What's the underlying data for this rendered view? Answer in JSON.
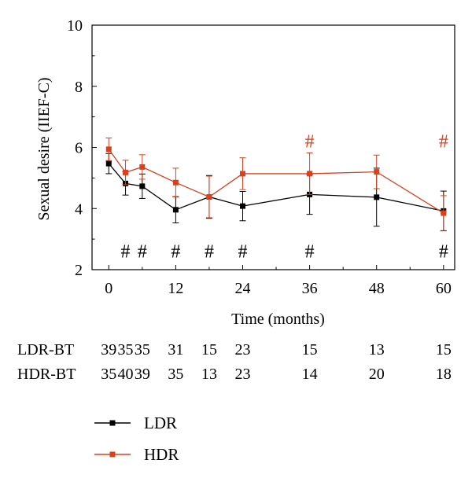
{
  "chart_data": {
    "type": "line",
    "xlabel": "Time (months)",
    "ylabel": "Sexual desire (IIEF-C)",
    "xlim": [
      -3,
      62
    ],
    "ylim": [
      2,
      10
    ],
    "xticks": [
      "0",
      "12",
      "24",
      "36",
      "48",
      "60"
    ],
    "yticks": [
      "2",
      "4",
      "6",
      "8",
      "10"
    ],
    "x": [
      0,
      3,
      6,
      12,
      18,
      24,
      36,
      48,
      60
    ],
    "series": [
      {
        "name": "LDR",
        "color": "#000000",
        "values": [
          5.47,
          4.82,
          4.73,
          3.96,
          4.38,
          4.08,
          4.46,
          4.37,
          3.92
        ],
        "error": [
          0.33,
          0.38,
          0.4,
          0.43,
          0.7,
          0.48,
          0.65,
          0.95,
          0.65
        ]
      },
      {
        "name": "HDR",
        "color": "#d9401e",
        "values": [
          5.94,
          5.18,
          5.36,
          4.85,
          4.38,
          5.14,
          5.14,
          5.2,
          3.85
        ],
        "error": [
          0.37,
          0.4,
          0.4,
          0.47,
          0.68,
          0.52,
          0.68,
          0.55,
          0.57
        ]
      }
    ],
    "markers": [
      {
        "label": "#",
        "x": 3,
        "y": 2.6,
        "color": "#000000"
      },
      {
        "label": "#",
        "x": 6,
        "y": 2.6,
        "color": "#000000"
      },
      {
        "label": "#",
        "x": 12,
        "y": 2.6,
        "color": "#000000"
      },
      {
        "label": "#",
        "x": 18,
        "y": 2.6,
        "color": "#000000"
      },
      {
        "label": "#",
        "x": 24,
        "y": 2.6,
        "color": "#000000"
      },
      {
        "label": "#",
        "x": 36,
        "y": 2.6,
        "color": "#000000"
      },
      {
        "label": "#",
        "x": 60,
        "y": 2.6,
        "color": "#000000"
      },
      {
        "label": "#",
        "x": 36,
        "y": 6.2,
        "color": "#d9401e"
      },
      {
        "label": "#",
        "x": 60,
        "y": 6.2,
        "color": "#d9401e"
      }
    ],
    "n_table": {
      "rows": [
        {
          "label": "LDR-BT",
          "values": [
            "39",
            "35",
            "35",
            "31",
            "15",
            "23",
            "15",
            "13",
            "15"
          ]
        },
        {
          "label": "HDR-BT",
          "values": [
            "35",
            "40",
            "39",
            "35",
            "13",
            "23",
            "14",
            "20",
            "18"
          ]
        }
      ]
    },
    "legend": {
      "placement": "bottom-left"
    }
  }
}
